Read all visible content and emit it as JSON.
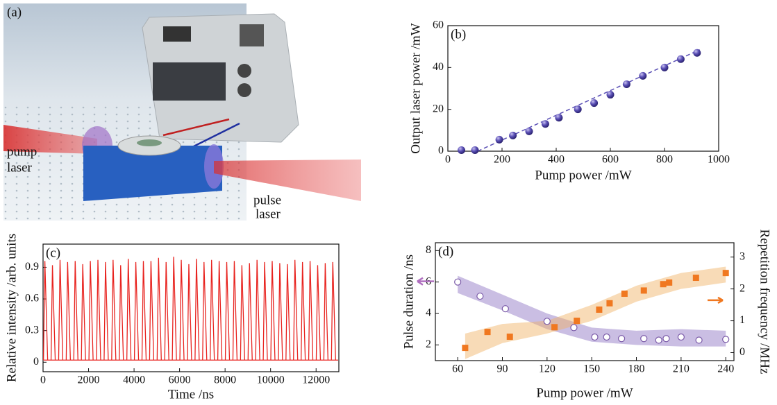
{
  "illustration": {
    "label": "(a)",
    "pump_laser": [
      "pump",
      "laser"
    ],
    "pulse_laser": [
      "pulse",
      "laser"
    ]
  },
  "chart_data": [
    {
      "type": "scatter",
      "panel_label": "(b)",
      "x_label": "Pump power /mW",
      "y_label": "Output laser power /mW",
      "xlim": [
        0,
        1000
      ],
      "xticks": [
        0,
        200,
        400,
        600,
        800,
        1000
      ],
      "ylim": [
        0,
        60
      ],
      "yticks": [
        0,
        20,
        40,
        60
      ],
      "series": [
        {
          "color": "#5a4fb5",
          "marker": "sphere",
          "x": [
            50,
            100,
            190,
            240,
            300,
            360,
            410,
            480,
            540,
            600,
            660,
            720,
            800,
            860,
            920
          ],
          "values": [
            0.5,
            0.5,
            5.5,
            7.5,
            9.5,
            13,
            16,
            20,
            23,
            27,
            32,
            36,
            40,
            44,
            47
          ]
        }
      ],
      "fit_line": {
        "color": "#5a4fb5",
        "x": [
          110,
          930
        ],
        "values": [
          0,
          48.5
        ]
      }
    },
    {
      "type": "line",
      "panel_label": "(c)",
      "x_label": "Time /ns",
      "y_label": "Relative intensity /arb. units",
      "xlim": [
        0,
        13000
      ],
      "xticks": [
        0,
        2000,
        4000,
        6000,
        8000,
        10000,
        12000
      ],
      "ylim": [
        -0.09,
        1.12
      ],
      "yticks": [
        0,
        0.3,
        0.6,
        0.9
      ],
      "baseline": 0.02,
      "series": [
        {
          "color": "#e8231f",
          "x": [
            80,
            413,
            746,
            1079,
            1412,
            1745,
            2078,
            2411,
            2744,
            3077,
            3410,
            3743,
            4076,
            4409,
            4742,
            5075,
            5408,
            5741,
            6074,
            6407,
            6740,
            7073,
            7406,
            7739,
            8072,
            8405,
            8738,
            9071,
            9404,
            9737,
            10070,
            10403,
            10736,
            11069,
            11402,
            11735,
            12068,
            12401,
            12734
          ],
          "values": [
            0.96,
            0.92,
            0.97,
            0.95,
            0.96,
            0.93,
            0.96,
            0.97,
            0.95,
            0.97,
            0.92,
            0.98,
            0.95,
            0.96,
            0.96,
            0.99,
            0.95,
            1.0,
            0.97,
            0.93,
            0.98,
            0.95,
            0.97,
            0.96,
            0.95,
            0.96,
            0.92,
            0.94,
            0.97,
            0.95,
            0.96,
            0.94,
            0.93,
            0.97,
            0.95,
            0.96,
            0.92,
            0.94,
            0.95
          ]
        }
      ]
    },
    {
      "type": "scatter",
      "panel_label": "(d)",
      "x_label": "Pump power /mW",
      "y_label": "Pulse duration /ns",
      "y2_label": "Repetition frequency /MHz",
      "xlim": [
        45,
        245.5
      ],
      "xticks": [
        60,
        90,
        120,
        150,
        180,
        210,
        240
      ],
      "ylim": [
        1,
        8.5
      ],
      "yticks": [
        2,
        4,
        6,
        8
      ],
      "y2lim": [
        -0.25,
        3.45
      ],
      "y2ticks": [
        0,
        1,
        2,
        3
      ],
      "bands": [
        {
          "color": "#8a6fc0",
          "axis": "y",
          "x": [
            60,
            90,
            120,
            150,
            180,
            210,
            240
          ],
          "lower": [
            5.3,
            4.2,
            3.0,
            2.2,
            2.0,
            1.9,
            1.9
          ],
          "upper": [
            6.4,
            5.2,
            4.0,
            3.1,
            2.9,
            3.0,
            2.9
          ]
        },
        {
          "color": "#f0b060",
          "axis": "y2",
          "x": [
            65,
            90,
            120,
            150,
            180,
            210,
            240
          ],
          "lower": [
            -0.2,
            0.3,
            0.6,
            1.0,
            1.6,
            2.0,
            2.2
          ],
          "upper": [
            0.6,
            0.9,
            1.0,
            1.5,
            2.1,
            2.5,
            2.7
          ]
        }
      ],
      "series": [
        {
          "color": "#7a5aa8",
          "marker": "circle",
          "axis": "y",
          "x": [
            60,
            75,
            92,
            120,
            138,
            152,
            160,
            170,
            185,
            195,
            200,
            210,
            222,
            240
          ],
          "values": [
            6.0,
            5.1,
            4.3,
            3.5,
            3.1,
            2.5,
            2.5,
            2.4,
            2.4,
            2.3,
            2.4,
            2.5,
            2.3,
            2.35
          ]
        },
        {
          "color": "#f07820",
          "marker": "square",
          "axis": "y2",
          "x": [
            65,
            80,
            95,
            125,
            140,
            155,
            162,
            172,
            185,
            198,
            202,
            220,
            240
          ],
          "values": [
            0.15,
            0.65,
            0.5,
            0.8,
            1.0,
            1.35,
            1.55,
            1.85,
            1.95,
            2.15,
            2.2,
            2.35,
            2.5
          ]
        }
      ]
    }
  ]
}
